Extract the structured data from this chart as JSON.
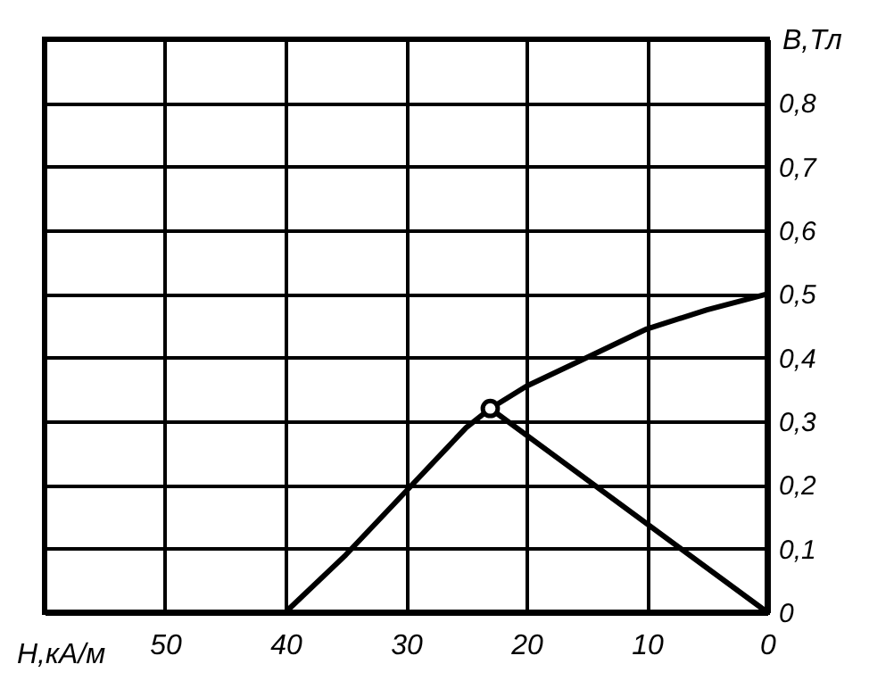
{
  "chart_data": {
    "type": "line",
    "xlabel": "H,кА/м",
    "ylabel": "B,Тл",
    "xlim": [
      60,
      0
    ],
    "xticks": [
      {
        "value": 60,
        "label": null
      },
      50,
      40,
      30,
      20,
      10,
      0
    ],
    "ylim": [
      0,
      0.9
    ],
    "yticks": [
      {
        "value": 0,
        "label": "0"
      },
      {
        "value": 0.1,
        "label": "0,1"
      },
      {
        "value": 0.2,
        "label": "0,2"
      },
      {
        "value": 0.3,
        "label": "0,3"
      },
      {
        "value": 0.4,
        "label": "0,4"
      },
      {
        "value": 0.5,
        "label": "0,5"
      },
      {
        "value": 0.6,
        "label": "0,6"
      },
      {
        "value": 0.7,
        "label": "0,7"
      },
      {
        "value": 0.8,
        "label": "0,8"
      },
      {
        "value": 0.9,
        "label": null
      }
    ],
    "grid": true,
    "legend": false,
    "series": [
      {
        "color": "#000000",
        "x": [
          40,
          35,
          30,
          25,
          23,
          20,
          15,
          10,
          5,
          0
        ],
        "values": [
          0,
          0.09,
          0.19,
          0.29,
          0.32,
          0.355,
          0.4,
          0.445,
          0.475,
          0.5
        ]
      },
      {
        "color": "#000000",
        "x": [
          23,
          0
        ],
        "values": [
          0.32,
          0
        ]
      },
      {
        "type": "scatter",
        "marker": "circle",
        "color": "#000000",
        "x": [
          23
        ],
        "values": [
          0.32
        ]
      }
    ]
  }
}
